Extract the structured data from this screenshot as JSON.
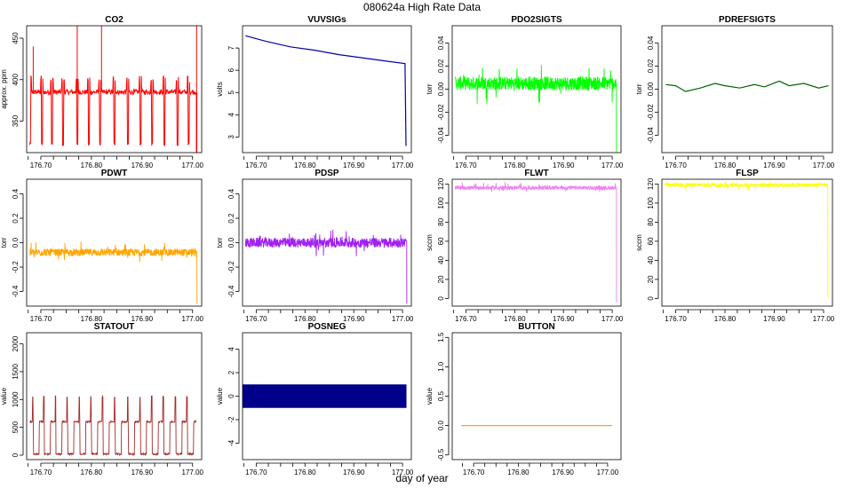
{
  "figure": {
    "title": "080624a   High Rate Data",
    "xlabel": "day of year"
  },
  "chart_data": [
    {
      "type": "line",
      "title": "CO2",
      "ylabel": "approx. ppm",
      "color": "#ff0000",
      "xlim": [
        176.672,
        177.018
      ],
      "ylim": [
        312,
        465
      ],
      "xticks": [
        176.7,
        176.8,
        176.9,
        177.0
      ],
      "xtick_labels": [
        "176.70",
        "176.80",
        "176.90",
        "177.00"
      ],
      "yticks": [
        350,
        400,
        450
      ],
      "ytick_labels": [
        "350",
        "400",
        "450"
      ],
      "series": [
        {
          "baseline": 385,
          "dip_min": 320,
          "dip_days": [
            176.679,
            176.702,
            176.722,
            176.744,
            176.772,
            176.795,
            176.817,
            176.845,
            176.872,
            176.897,
            176.92,
            176.944,
            176.97,
            176.992
          ],
          "spikes": [
            [
              176.685,
              440
            ],
            [
              176.772,
              465
            ],
            [
              176.82,
              465
            ],
            [
              177.008,
              465
            ]
          ]
        }
      ]
    },
    {
      "type": "line",
      "title": "VUVSIGs",
      "ylabel": "volts",
      "color": "#0000aa",
      "xlim": [
        176.672,
        177.018
      ],
      "ylim": [
        2.3,
        8.0
      ],
      "xticks": [
        176.7,
        176.8,
        176.9,
        177.0
      ],
      "xtick_labels": [
        "176.70",
        "176.80",
        "176.90",
        "177.00"
      ],
      "yticks": [
        3,
        4,
        5,
        6,
        7
      ],
      "ytick_labels": [
        "3",
        "4",
        "5",
        "6",
        "7"
      ],
      "series": [
        {
          "x": [
            176.678,
            176.72,
            176.77,
            176.82,
            176.87,
            176.92,
            176.97,
            177.005,
            177.007
          ],
          "y": [
            7.55,
            7.3,
            7.05,
            6.9,
            6.7,
            6.55,
            6.4,
            6.3,
            2.6
          ]
        }
      ]
    },
    {
      "type": "line",
      "title": "PDO2SIGTS",
      "ylabel": "torr",
      "color": "#00ff00",
      "xlim": [
        176.672,
        177.018
      ],
      "ylim": [
        -0.055,
        0.055
      ],
      "xticks": [
        176.7,
        176.8,
        176.9,
        177.0
      ],
      "xtick_labels": [
        "176.70",
        "176.80",
        "176.90",
        "177.00"
      ],
      "yticks": [
        -0.04,
        -0.02,
        0.0,
        0.02,
        0.04
      ],
      "ytick_labels": [
        "-0.04",
        "-0.02",
        "0.00",
        "0.02",
        "0.04"
      ],
      "series": [
        {
          "baseline": 0.005,
          "noise": 0.006,
          "end_drop": -0.055
        }
      ]
    },
    {
      "type": "line",
      "title": "PDREFSIGTS",
      "ylabel": "torr",
      "color": "#006400",
      "xlim": [
        176.672,
        177.018
      ],
      "ylim": [
        -0.055,
        0.055
      ],
      "xticks": [
        176.7,
        176.8,
        176.9,
        177.0
      ],
      "xtick_labels": [
        "176.70",
        "176.80",
        "176.90",
        "177.00"
      ],
      "yticks": [
        -0.04,
        -0.02,
        0.0,
        0.02,
        0.04
      ],
      "ytick_labels": [
        "-0.04",
        "-0.02",
        "0.00",
        "0.02",
        "0.04"
      ],
      "series": [
        {
          "x": [
            176.68,
            176.7,
            176.72,
            176.75,
            176.78,
            176.8,
            176.83,
            176.86,
            176.88,
            176.91,
            176.93,
            176.96,
            176.99,
            177.01
          ],
          "y": [
            0.004,
            0.003,
            -0.002,
            0.001,
            0.005,
            0.003,
            0.001,
            0.004,
            0.002,
            0.007,
            0.003,
            0.005,
            0.001,
            0.003
          ]
        }
      ]
    },
    {
      "type": "line",
      "title": "PDWT",
      "ylabel": "torr",
      "color": "#ffa500",
      "xlim": [
        176.672,
        177.018
      ],
      "ylim": [
        -0.52,
        0.52
      ],
      "xticks": [
        176.7,
        176.8,
        176.9,
        177.0
      ],
      "xtick_labels": [
        "176.70",
        "176.80",
        "176.90",
        "177.00"
      ],
      "yticks": [
        -0.4,
        -0.2,
        0.0,
        0.2,
        0.4
      ],
      "ytick_labels": [
        "-0.4",
        "-0.2",
        "0.0",
        "0.2",
        "0.4"
      ],
      "series": [
        {
          "baseline": -0.08,
          "noise": 0.03,
          "end_drop": -0.5
        }
      ]
    },
    {
      "type": "line",
      "title": "PDSP",
      "ylabel": "torr",
      "color": "#a020f0",
      "xlim": [
        176.672,
        177.018
      ],
      "ylim": [
        -0.52,
        0.52
      ],
      "xticks": [
        176.7,
        176.8,
        176.9,
        177.0
      ],
      "xtick_labels": [
        "176.70",
        "176.80",
        "176.90",
        "177.00"
      ],
      "yticks": [
        -0.4,
        -0.2,
        0.0,
        0.2,
        0.4
      ],
      "ytick_labels": [
        "-0.4",
        "-0.2",
        "0.0",
        "0.2",
        "0.4"
      ],
      "series": [
        {
          "baseline": 0.0,
          "noise": 0.04,
          "end_drop": -0.5
        }
      ]
    },
    {
      "type": "line",
      "title": "FLWT",
      "ylabel": "sccm",
      "color": "#ee82ee",
      "xlim": [
        176.672,
        177.018
      ],
      "ylim": [
        -8,
        125
      ],
      "xticks": [
        176.7,
        176.8,
        176.9,
        177.0
      ],
      "xtick_labels": [
        "176.70",
        "176.80",
        "176.90",
        "177.00"
      ],
      "yticks": [
        0,
        20,
        40,
        60,
        80,
        100,
        120
      ],
      "ytick_labels": [
        "0",
        "20",
        "40",
        "60",
        "80",
        "100",
        "120"
      ],
      "series": [
        {
          "baseline": 116,
          "noise": 2.0,
          "end_drop": -4
        }
      ]
    },
    {
      "type": "line",
      "title": "FLSP",
      "ylabel": "sccm",
      "color": "#ffff00",
      "xlim": [
        176.672,
        177.018
      ],
      "ylim": [
        -8,
        125
      ],
      "xticks": [
        176.7,
        176.8,
        176.9,
        177.0
      ],
      "xtick_labels": [
        "176.70",
        "176.80",
        "176.90",
        "177.00"
      ],
      "yticks": [
        0,
        20,
        40,
        60,
        80,
        100,
        120
      ],
      "ytick_labels": [
        "0",
        "20",
        "40",
        "60",
        "80",
        "100",
        "120"
      ],
      "series": [
        {
          "baseline": 119,
          "noise": 2.0,
          "end_drop": 0
        }
      ]
    },
    {
      "type": "line",
      "title": "STATOUT",
      "ylabel": "value",
      "color": "#a52a2a",
      "xlim": [
        176.672,
        177.018
      ],
      "ylim": [
        -80,
        2200
      ],
      "xticks": [
        176.7,
        176.8,
        176.9,
        177.0
      ],
      "xtick_labels": [
        "176.70",
        "176.80",
        "176.90",
        "177.00"
      ],
      "yticks": [
        0,
        500,
        1000,
        1500,
        2000
      ],
      "ytick_labels": [
        "0",
        "500",
        "1000",
        "1500",
        "2000"
      ],
      "series": [
        {
          "low": 20,
          "high": 600,
          "spike": 1050,
          "pulse_days": [
            176.68,
            176.702,
            176.725,
            176.748,
            176.772,
            176.795,
            176.818,
            176.842,
            176.868,
            176.892,
            176.915,
            176.938,
            176.962,
            176.985
          ]
        }
      ]
    },
    {
      "type": "area",
      "title": "POSNEG",
      "ylabel": "value",
      "color": "#00008b",
      "xlim": [
        176.672,
        177.018
      ],
      "ylim": [
        -5.4,
        5.4
      ],
      "xticks": [
        176.7,
        176.8,
        176.9,
        177.0
      ],
      "xtick_labels": [
        "176.70",
        "176.80",
        "176.90",
        "177.00"
      ],
      "yticks": [
        -4,
        -2,
        0,
        2,
        4
      ],
      "ytick_labels": [
        "-4",
        "-2",
        "0",
        "2",
        "4"
      ],
      "series": [
        {
          "x_range": [
            176.672,
            177.008
          ],
          "y_range": [
            -1,
            1
          ]
        }
      ]
    },
    {
      "type": "line",
      "title": "BUTTON",
      "ylabel": "value",
      "color": "#ffa500",
      "xlim": [
        176.652,
        177.03
      ],
      "ylim": [
        -0.58,
        1.58
      ],
      "xticks": [
        176.7,
        176.8,
        176.9,
        177.0
      ],
      "xtick_labels": [
        "176.70",
        "176.80",
        "176.90",
        "177.00"
      ],
      "yticks": [
        -0.5,
        0.0,
        0.5,
        1.0,
        1.5
      ],
      "ytick_labels": [
        "-0.5",
        "0.0",
        "0.5",
        "1.0",
        "1.5"
      ],
      "series": [
        {
          "x": [
            176.672,
            177.01
          ],
          "y": [
            0,
            0
          ]
        }
      ]
    }
  ]
}
